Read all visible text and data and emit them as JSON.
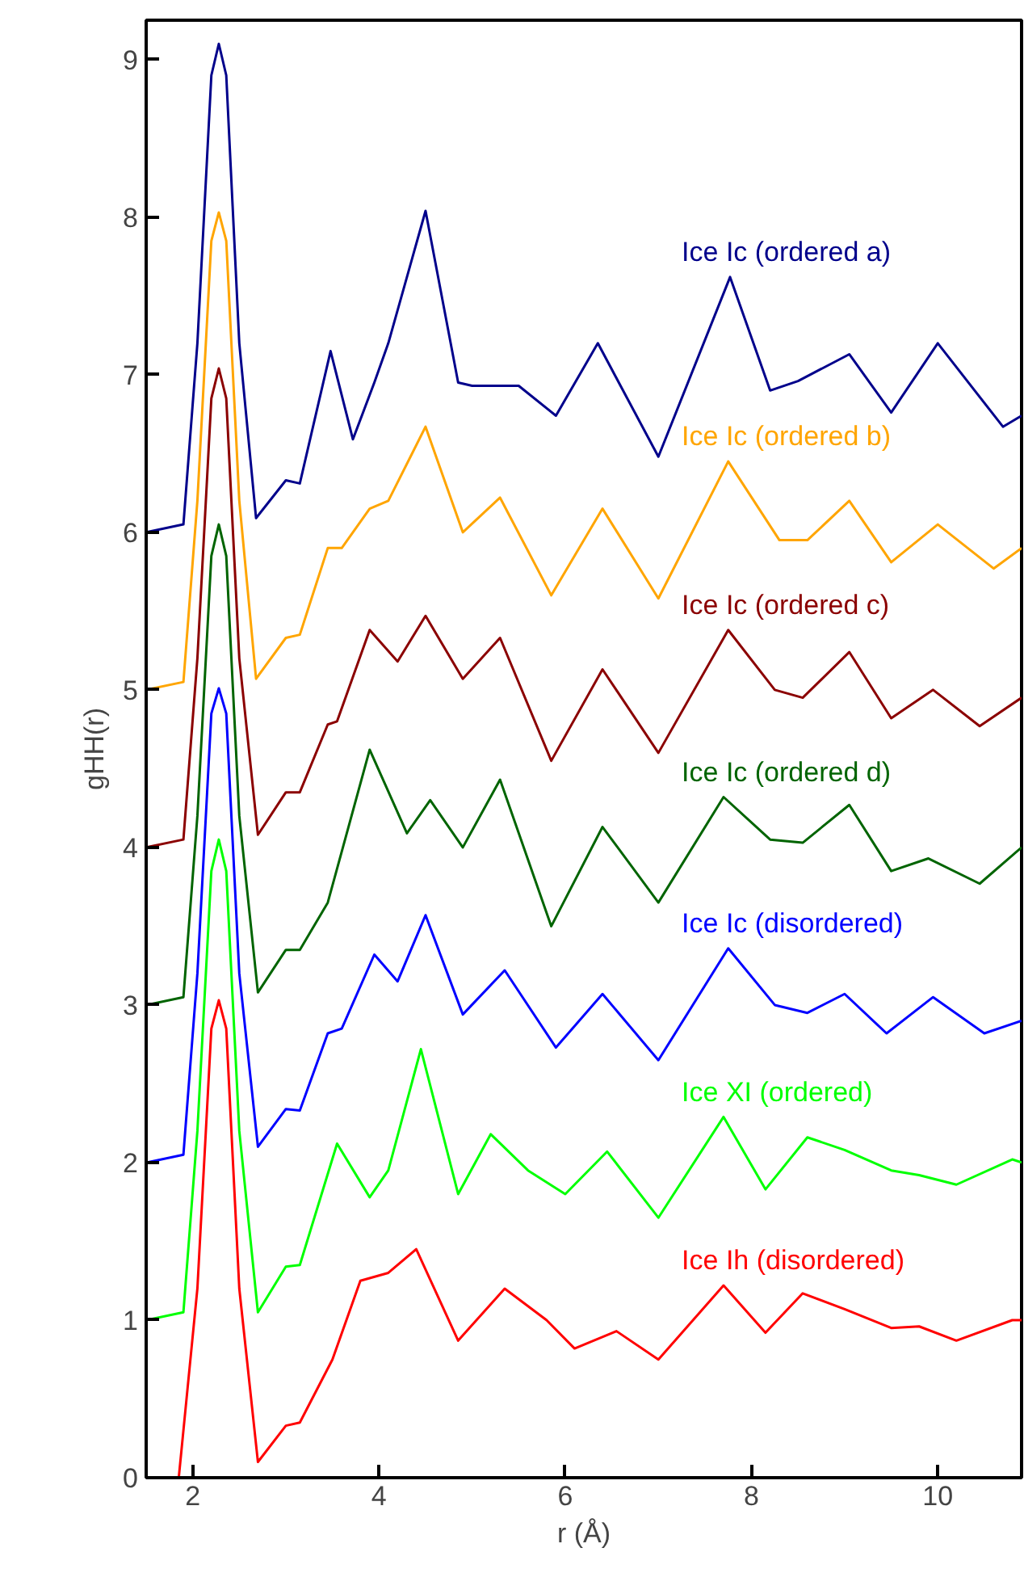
{
  "chart_data": {
    "type": "line",
    "xlabel": "r (Å)",
    "ylabel": "gHH(r)",
    "xlim": [
      1.5,
      10.9
    ],
    "ylim": [
      0,
      9.25
    ],
    "xticks": [
      2,
      4,
      6,
      8,
      10
    ],
    "yticks": [
      0,
      1,
      2,
      3,
      4,
      5,
      6,
      7,
      8,
      9
    ],
    "grid": false,
    "legend": false,
    "marker": "none",
    "line_style": "solid",
    "series": [
      {
        "name": "Ice Ic (ordered a)",
        "color": "#00008b",
        "x": [
          1.5,
          1.9,
          2.05,
          2.2,
          2.28,
          2.36,
          2.5,
          2.68,
          3.0,
          3.15,
          3.48,
          3.72,
          3.95,
          4.1,
          4.5,
          4.85,
          5.0,
          5.5,
          5.9,
          6.35,
          7.0,
          7.77,
          8.2,
          8.5,
          9.05,
          9.5,
          10.0,
          10.7,
          10.9
        ],
        "values": [
          6,
          6.05,
          7.2,
          8.9,
          9.1,
          8.9,
          7.2,
          6.09,
          6.33,
          6.31,
          7.15,
          6.59,
          6.95,
          7.2,
          8.04,
          6.95,
          6.93,
          6.93,
          6.74,
          7.2,
          6.48,
          7.62,
          6.9,
          6.96,
          7.13,
          6.76,
          7.2,
          6.67,
          6.74
        ]
      },
      {
        "name": "Ice Ic (ordered b)",
        "color": "#ffa500",
        "x": [
          1.5,
          1.9,
          2.05,
          2.2,
          2.28,
          2.36,
          2.5,
          2.68,
          3.0,
          3.15,
          3.45,
          3.6,
          3.9,
          4.1,
          4.5,
          4.9,
          5.3,
          5.85,
          6.4,
          7.0,
          7.75,
          8.3,
          8.6,
          9.05,
          9.5,
          10.0,
          10.6,
          10.9
        ],
        "values": [
          5,
          5.05,
          6.2,
          7.85,
          8.03,
          7.85,
          6.2,
          5.07,
          5.33,
          5.35,
          5.9,
          5.9,
          6.15,
          6.2,
          6.67,
          6.0,
          6.22,
          5.6,
          6.15,
          5.58,
          6.45,
          5.95,
          5.95,
          6.2,
          5.81,
          6.05,
          5.77,
          5.9
        ]
      },
      {
        "name": "Ice Ic (ordered c)",
        "color": "#8b0000",
        "x": [
          1.5,
          1.9,
          2.05,
          2.2,
          2.28,
          2.36,
          2.5,
          2.7,
          3.0,
          3.15,
          3.45,
          3.55,
          3.9,
          4.2,
          4.5,
          4.9,
          5.3,
          5.85,
          6.4,
          7.0,
          7.75,
          8.25,
          8.55,
          9.05,
          9.5,
          9.95,
          10.45,
          10.9
        ],
        "values": [
          4,
          4.05,
          5.2,
          6.85,
          7.04,
          6.85,
          5.2,
          4.08,
          4.35,
          4.35,
          4.78,
          4.8,
          5.38,
          5.18,
          5.47,
          5.07,
          5.33,
          4.55,
          5.13,
          4.6,
          5.38,
          5.0,
          4.95,
          5.24,
          4.82,
          5.0,
          4.77,
          4.95
        ]
      },
      {
        "name": "Ice Ic (ordered d)",
        "color": "#006400",
        "x": [
          1.5,
          1.9,
          2.05,
          2.2,
          2.28,
          2.36,
          2.5,
          2.7,
          3.0,
          3.15,
          3.45,
          3.9,
          4.3,
          4.55,
          4.9,
          5.3,
          5.85,
          6.4,
          7.0,
          7.7,
          8.2,
          8.55,
          9.05,
          9.5,
          9.9,
          10.45,
          10.9
        ],
        "values": [
          3,
          3.05,
          4.2,
          5.85,
          6.05,
          5.85,
          4.2,
          3.08,
          3.35,
          3.35,
          3.65,
          4.62,
          4.09,
          4.3,
          4.0,
          4.43,
          3.5,
          4.13,
          3.65,
          4.32,
          4.05,
          4.03,
          4.27,
          3.85,
          3.93,
          3.77,
          4.0
        ]
      },
      {
        "name": "Ice Ic (disordered)",
        "color": "#0000ff",
        "x": [
          1.5,
          1.9,
          2.05,
          2.2,
          2.28,
          2.36,
          2.5,
          2.7,
          3.0,
          3.15,
          3.45,
          3.6,
          3.95,
          4.2,
          4.5,
          4.9,
          5.35,
          5.9,
          6.4,
          7.0,
          7.75,
          8.25,
          8.6,
          9.0,
          9.45,
          9.95,
          10.5,
          10.9
        ],
        "values": [
          2,
          2.05,
          3.2,
          4.85,
          5.01,
          4.85,
          3.2,
          2.1,
          2.34,
          2.33,
          2.82,
          2.85,
          3.32,
          3.15,
          3.57,
          2.94,
          3.22,
          2.73,
          3.07,
          2.65,
          3.36,
          3.0,
          2.95,
          3.07,
          2.82,
          3.05,
          2.82,
          2.9
        ]
      },
      {
        "name": "Ice XI (ordered)",
        "color": "#00ff00",
        "x": [
          1.5,
          1.9,
          2.05,
          2.2,
          2.28,
          2.36,
          2.5,
          2.7,
          3.0,
          3.15,
          3.55,
          3.9,
          4.1,
          4.45,
          4.85,
          5.2,
          5.6,
          6.0,
          6.45,
          7.0,
          7.7,
          8.15,
          8.6,
          9.0,
          9.5,
          9.8,
          10.2,
          10.8,
          10.9
        ],
        "values": [
          1,
          1.05,
          2.2,
          3.85,
          4.05,
          3.85,
          2.2,
          1.05,
          1.34,
          1.35,
          2.12,
          1.78,
          1.95,
          2.72,
          1.8,
          2.18,
          1.95,
          1.8,
          2.07,
          1.65,
          2.29,
          1.83,
          2.16,
          2.08,
          1.95,
          1.92,
          1.86,
          2.02,
          2.0
        ]
      },
      {
        "name": "Ice Ih (disordered)",
        "color": "#ff0000",
        "x": [
          1.85,
          2.05,
          2.2,
          2.28,
          2.36,
          2.5,
          2.7,
          3.0,
          3.15,
          3.5,
          3.8,
          4.1,
          4.4,
          4.85,
          5.35,
          5.8,
          6.1,
          6.55,
          7.0,
          7.7,
          8.15,
          8.55,
          9.0,
          9.5,
          9.8,
          10.2,
          10.8,
          10.9
        ],
        "values": [
          0,
          1.2,
          2.85,
          3.03,
          2.85,
          1.2,
          0.1,
          0.33,
          0.35,
          0.75,
          1.25,
          1.3,
          1.45,
          0.87,
          1.2,
          1.0,
          0.82,
          0.93,
          0.75,
          1.22,
          0.92,
          1.17,
          1.07,
          0.95,
          0.96,
          0.87,
          1.0,
          1.0
        ]
      }
    ]
  }
}
